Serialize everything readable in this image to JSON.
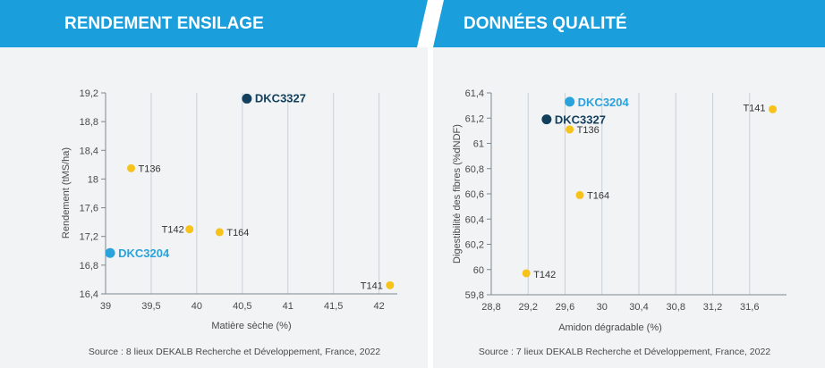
{
  "colors": {
    "banner": "#1a9fdc",
    "panel": "#f1f3f5",
    "yellow": "#f7c21a",
    "dark": "#123f5c",
    "blue": "#2aa3dd"
  },
  "headers": {
    "left": "RENDEMENT ENSILAGE",
    "right": "DONNÉES QUALITÉ"
  },
  "chart_data": [
    {
      "type": "scatter",
      "title": "RENDEMENT ENSILAGE",
      "xlabel": "Matière sèche (%)",
      "ylabel": "Rendement (tMS/ha)",
      "xlim": [
        39,
        42.2
      ],
      "ylim": [
        16.4,
        19.2
      ],
      "xticks": [
        39,
        39.5,
        40,
        40.5,
        41,
        41.5,
        42
      ],
      "xtick_labels": [
        "39",
        "39,5",
        "40",
        "40,5",
        "41",
        "41,5",
        "42"
      ],
      "yticks": [
        16.4,
        16.8,
        17.2,
        17.6,
        18,
        18.4,
        18.8,
        19.2
      ],
      "ytick_labels": [
        "16,4",
        "16,8",
        "17,2",
        "17,6",
        "18",
        "18,4",
        "18,8",
        "19,2"
      ],
      "points": [
        {
          "name": "DKC3327",
          "x": 40.55,
          "y": 19.12,
          "color": "#123f5c",
          "big": true
        },
        {
          "name": "T136",
          "x": 39.28,
          "y": 18.15,
          "color": "#f7c21a",
          "big": false
        },
        {
          "name": "T142",
          "x": 39.92,
          "y": 17.3,
          "color": "#f7c21a",
          "big": false
        },
        {
          "name": "T164",
          "x": 40.25,
          "y": 17.26,
          "color": "#f7c21a",
          "big": false
        },
        {
          "name": "DKC3204",
          "x": 39.05,
          "y": 16.97,
          "color": "#2aa3dd",
          "big": true
        },
        {
          "name": "T141",
          "x": 42.12,
          "y": 16.52,
          "color": "#f7c21a",
          "big": false
        }
      ],
      "source": "Source : 8 lieux DEKALB Recherche et Développement, France, 2022"
    },
    {
      "type": "scatter",
      "title": "DONNÉES QUALITÉ",
      "xlabel": "Amidon dégradable (%)",
      "ylabel": "Digestibilité des fibres (%dNDF)",
      "xlim": [
        28.8,
        32
      ],
      "ylim": [
        59.8,
        61.4
      ],
      "xticks": [
        28.8,
        29.2,
        29.6,
        30,
        30.4,
        30.8,
        31.2,
        31.6
      ],
      "xtick_labels": [
        "28,8",
        "29,2",
        "29,6",
        "30",
        "30,4",
        "30,8",
        "31,2",
        "31,6"
      ],
      "yticks": [
        59.8,
        60,
        60.2,
        60.4,
        60.6,
        60.8,
        61,
        61.2,
        61.4
      ],
      "ytick_labels": [
        "59,8",
        "60",
        "60,2",
        "60,4",
        "60,6",
        "60,8",
        "61",
        "61,2",
        "61,4"
      ],
      "points": [
        {
          "name": "DKC3204",
          "x": 29.65,
          "y": 61.33,
          "color": "#2aa3dd",
          "big": true
        },
        {
          "name": "DKC3327",
          "x": 29.4,
          "y": 61.19,
          "color": "#123f5c",
          "big": true
        },
        {
          "name": "T136",
          "x": 29.65,
          "y": 61.11,
          "color": "#f7c21a",
          "big": false
        },
        {
          "name": "T141",
          "x": 31.85,
          "y": 61.27,
          "color": "#f7c21a",
          "big": false
        },
        {
          "name": "T164",
          "x": 29.76,
          "y": 60.59,
          "color": "#f7c21a",
          "big": false
        },
        {
          "name": "T142",
          "x": 29.18,
          "y": 59.97,
          "color": "#f7c21a",
          "big": false
        }
      ],
      "source": "Source : 7 lieux DEKALB Recherche et Développement, France, 2022"
    }
  ]
}
